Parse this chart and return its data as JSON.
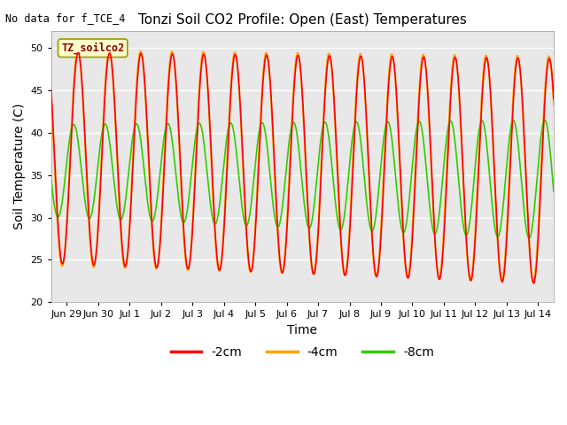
{
  "title": "Tonzi Soil CO2 Profile: Open (East) Temperatures",
  "xlabel": "Time",
  "ylabel": "Soil Temperature (C)",
  "watermark_text": "No data for f_TCE_4",
  "legend_label_text": "TZ_soilco2",
  "ylim": [
    20,
    52
  ],
  "yticks": [
    20,
    25,
    30,
    35,
    40,
    45,
    50
  ],
  "fig_bg_color": "#ffffff",
  "plot_bg_color": "#e8e8e8",
  "line_2cm_color": "#ff0000",
  "line_4cm_color": "#ffa500",
  "line_8cm_color": "#33cc00",
  "line_width": 1.2,
  "legend_labels": [
    "-2cm",
    "-4cm",
    "-8cm"
  ],
  "legend_colors": [
    "#ff0000",
    "#ffa500",
    "#33cc00"
  ],
  "tick_labels": [
    "Jun 29",
    "Jun 30",
    "Jul 1",
    "Jul 2",
    "Jul 3",
    "Jul 4",
    "Jul 5",
    "Jul 6",
    "Jul 7",
    "Jul 8",
    "Jul 9",
    "Jul 10",
    "Jul 11",
    "Jul 12",
    "Jul 13",
    "Jul 14"
  ],
  "tick_positions": [
    0,
    1,
    2,
    3,
    4,
    5,
    6,
    7,
    8,
    9,
    10,
    11,
    12,
    13,
    14,
    15
  ],
  "xlim_left": -0.5,
  "xlim_right": 15.5
}
